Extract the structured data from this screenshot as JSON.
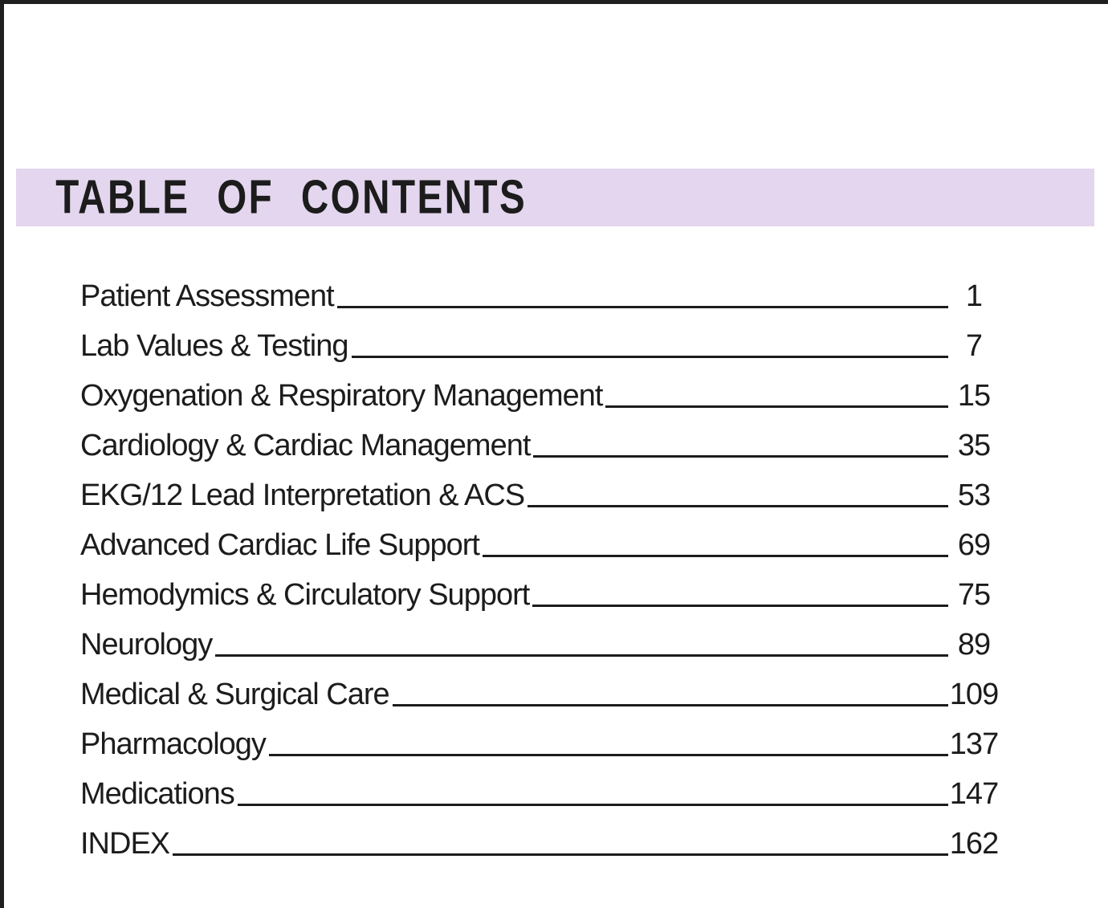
{
  "page": {
    "title": "TABLE OF CONTENTS"
  },
  "colors": {
    "background": "#ffffff",
    "banner": "#e3d6ee",
    "ink": "#1c1c1c",
    "page_edge": "#1f1f1f"
  },
  "toc": {
    "entries": [
      {
        "label": "Patient Assessment",
        "page": "1"
      },
      {
        "label": "Lab Values & Testing",
        "page": "7"
      },
      {
        "label": "Oxygenation & Respiratory Management",
        "page": "15"
      },
      {
        "label": "Cardiology & Cardiac Management",
        "page": "35"
      },
      {
        "label": "EKG/12 Lead Interpretation & ACS",
        "page": "53"
      },
      {
        "label": "Advanced Cardiac Life Support",
        "page": "69"
      },
      {
        "label": "Hemodymics & Circulatory Support",
        "page": "75"
      },
      {
        "label": "Neurology",
        "page": "89"
      },
      {
        "label": "Medical & Surgical Care",
        "page": "109"
      },
      {
        "label": "Pharmacology",
        "page": "137"
      },
      {
        "label": "Medications",
        "page": "147"
      },
      {
        "label": "INDEX",
        "page": "162"
      }
    ]
  }
}
